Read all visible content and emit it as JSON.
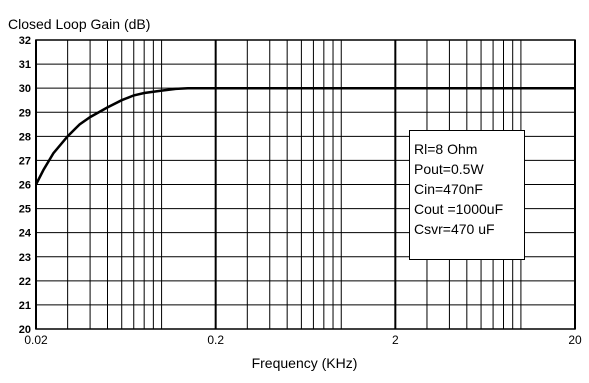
{
  "chart_data": {
    "type": "line",
    "title": "",
    "ylabel": "Closed Loop Gain (dB)",
    "xlabel": "Frequency  (KHz)",
    "xscale": "log",
    "xlim": [
      0.02,
      20
    ],
    "ylim": [
      20,
      32
    ],
    "x_tick_labels": [
      "0.02",
      "0.2",
      "2",
      "20"
    ],
    "x_tick_values": [
      0.02,
      0.2,
      2,
      20
    ],
    "y_tick_values": [
      20,
      21,
      22,
      23,
      24,
      25,
      26,
      27,
      28,
      29,
      30,
      31,
      32
    ],
    "grid": true,
    "series": [
      {
        "x": [
          0.02,
          0.022,
          0.025,
          0.03,
          0.035,
          0.04,
          0.05,
          0.06,
          0.07,
          0.08,
          0.1,
          0.12,
          0.14,
          0.2,
          0.5,
          1,
          2,
          5,
          10,
          20
        ],
        "values": [
          26.0,
          26.6,
          27.3,
          28.0,
          28.5,
          28.8,
          29.2,
          29.5,
          29.7,
          29.8,
          29.9,
          29.97,
          30.0,
          30.0,
          30.0,
          30.0,
          30.0,
          30.0,
          30.0,
          30.0
        ]
      }
    ],
    "legend": {
      "placement": "right",
      "lines": [
        "Rl=8 Ohm",
        "Pout=0.5W",
        "Cin=470nF",
        "Cout =1000uF",
        "Csvr=470 uF"
      ]
    },
    "colors": {
      "line": "#000000",
      "grid": "#000000"
    }
  }
}
